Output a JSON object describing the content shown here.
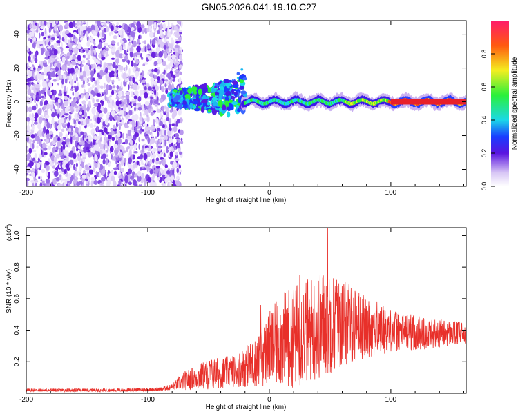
{
  "page_title": "GN05.2026.041.19.10.C27",
  "chart_data": [
    {
      "type": "heatmap",
      "title": "GN05.2026.041.19.10.C27",
      "xlabel": "Height of straight line (km)",
      "ylabel": "Frequency (Hz)",
      "xlim": [
        -200,
        162
      ],
      "ylim": [
        -50,
        48
      ],
      "x_ticks": [
        -200,
        -100,
        0,
        100
      ],
      "x_tick_labels": [
        "-200",
        "-100",
        "0",
        "100"
      ],
      "y_ticks": [
        -40,
        -20,
        0,
        20,
        40
      ],
      "y_tick_labels": [
        "-40",
        "-20",
        "0",
        "20",
        "40"
      ],
      "colorbar": {
        "label": "Normalized spectral amplitude",
        "range": [
          0,
          1
        ],
        "ticks": [
          0.0,
          0.2,
          0.4,
          0.6,
          0.8
        ],
        "tick_labels": [
          "0.0",
          "0.2",
          "0.4",
          "0.6",
          "0.8"
        ]
      },
      "regions": [
        {
          "name": "broadband noise",
          "x_range": [
            -200,
            -80
          ],
          "freq_range": [
            -50,
            48
          ],
          "amplitude": 0.1
        },
        {
          "name": "onset",
          "x_range": [
            -80,
            -20
          ],
          "freq_range": [
            -8,
            15
          ],
          "amplitude": 0.45
        },
        {
          "name": "narrowband line",
          "x_range": [
            -20,
            162
          ],
          "freq": 0,
          "amplitude_start": 0.35,
          "amplitude_end": 1.0
        }
      ]
    },
    {
      "type": "line",
      "xlabel": "Height of straight line (km)",
      "ylabel": "SNR (10 * v/v)",
      "y_scale_label": "(x10",
      "y_scale_exponent": "4",
      "xlim": [
        -200,
        162
      ],
      "ylim": [
        0,
        1.05
      ],
      "x_ticks": [
        -200,
        -100,
        0,
        100
      ],
      "x_tick_labels": [
        "-200",
        "-100",
        "0",
        "100"
      ],
      "y_ticks": [
        0.2,
        0.4,
        0.6,
        0.8,
        1.0
      ],
      "y_tick_labels": [
        "0.2",
        "0.4",
        "0.6",
        "0.8",
        "1.0"
      ],
      "series": [
        {
          "name": "SNR",
          "color": "#e8302a",
          "envelope_x": [
            -200,
            -120,
            -90,
            -80,
            -70,
            -50,
            -30,
            -10,
            0,
            10,
            25,
            40,
            48,
            55,
            65,
            80,
            100,
            130,
            162
          ],
          "envelope_mean": [
            0.02,
            0.02,
            0.025,
            0.04,
            0.08,
            0.12,
            0.14,
            0.2,
            0.28,
            0.33,
            0.38,
            0.42,
            0.46,
            0.45,
            0.44,
            0.42,
            0.4,
            0.38,
            0.38
          ],
          "envelope_amp": [
            0.01,
            0.01,
            0.012,
            0.02,
            0.06,
            0.1,
            0.1,
            0.16,
            0.24,
            0.3,
            0.34,
            0.34,
            0.36,
            0.3,
            0.26,
            0.2,
            0.14,
            0.1,
            0.07
          ],
          "peaks": [
            {
              "x": 48,
              "y": 1.05
            },
            {
              "x": -7,
              "y": 0.56
            },
            {
              "x": 25,
              "y": 0.75
            },
            {
              "x": 55,
              "y": 0.72
            }
          ]
        }
      ]
    }
  ]
}
